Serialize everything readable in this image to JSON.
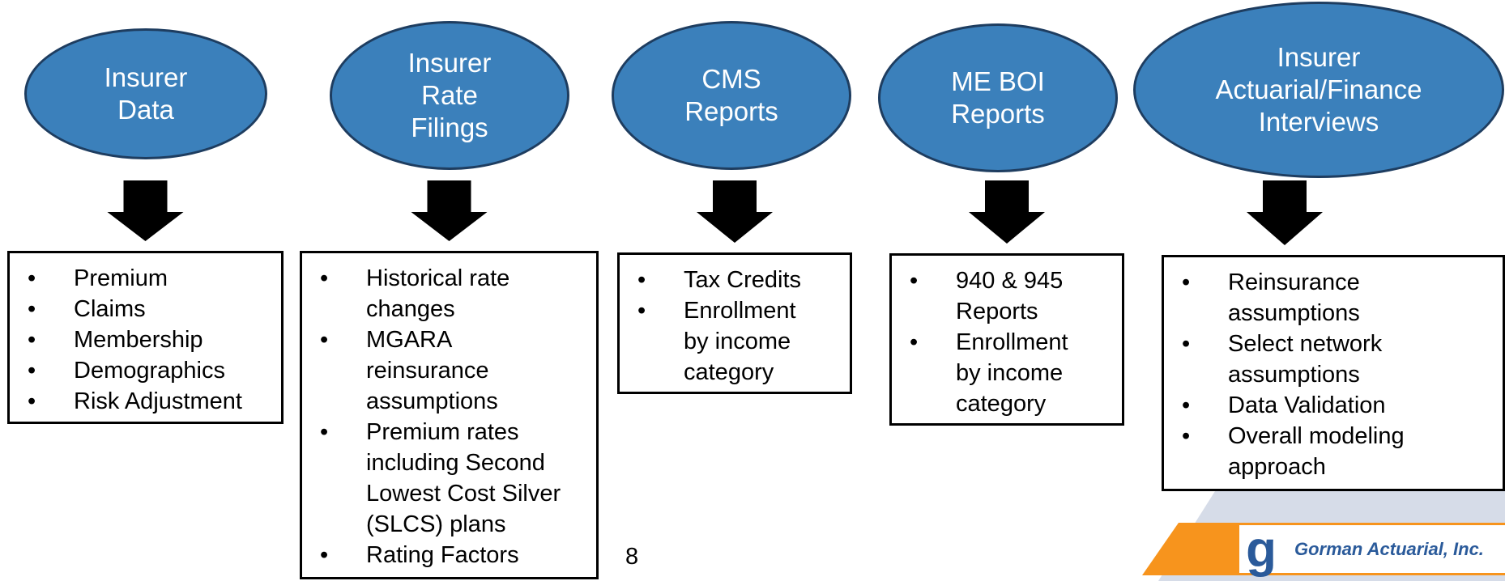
{
  "nodes": [
    {
      "label": [
        "Insurer",
        "Data"
      ],
      "items": [
        [
          "Premium"
        ],
        [
          "Claims"
        ],
        [
          "Membership"
        ],
        [
          "Demographics"
        ],
        [
          "Risk Adjustment"
        ]
      ]
    },
    {
      "label": [
        "Insurer",
        "Rate",
        "Filings"
      ],
      "items": [
        [
          "Historical rate",
          "changes"
        ],
        [
          "MGARA",
          "reinsurance",
          "assumptions"
        ],
        [
          "Premium rates",
          "including Second",
          "Lowest Cost Silver",
          "(SLCS) plans"
        ],
        [
          "Rating Factors"
        ]
      ]
    },
    {
      "label": [
        "CMS",
        "Reports"
      ],
      "items": [
        [
          "Tax Credits"
        ],
        [
          "Enrollment",
          "by income",
          "category"
        ]
      ]
    },
    {
      "label": [
        "ME BOI",
        "Reports"
      ],
      "items": [
        [
          "940 & 945",
          "Reports"
        ],
        [
          "Enrollment",
          "by income",
          "category"
        ]
      ]
    },
    {
      "label": [
        "Insurer",
        "Actuarial/Finance",
        "Interviews"
      ],
      "items": [
        [
          "Reinsurance",
          "assumptions"
        ],
        [
          "Select network",
          "assumptions"
        ],
        [
          "Data Validation"
        ],
        [
          "Overall modeling",
          "approach"
        ]
      ]
    }
  ],
  "page_number": "8",
  "logo": {
    "company": "Gorman Actuarial, Inc."
  }
}
